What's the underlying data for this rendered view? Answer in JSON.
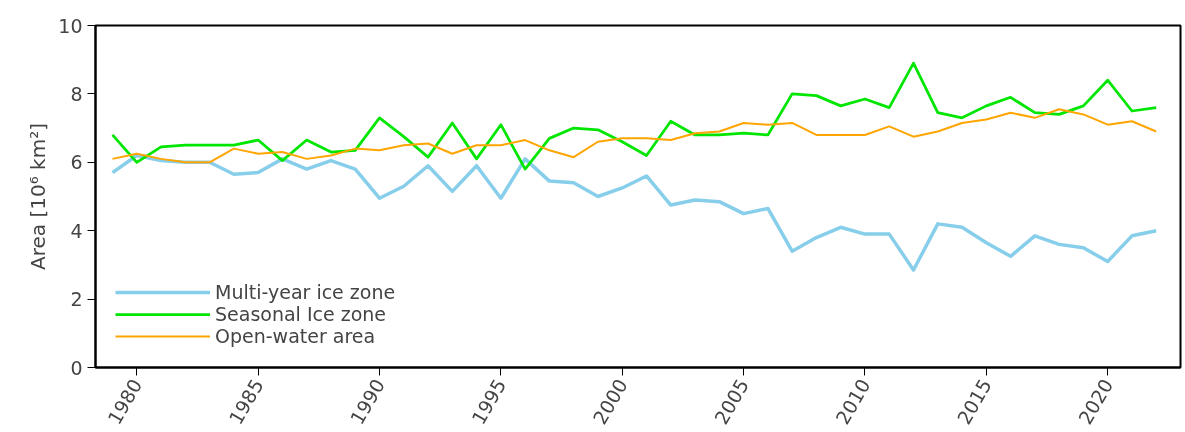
{
  "chart_data": {
    "type": "line",
    "ylabel": "Area [10⁶ km²]",
    "x": [
      1979,
      1980,
      1981,
      1982,
      1983,
      1984,
      1985,
      1986,
      1987,
      1988,
      1989,
      1990,
      1991,
      1992,
      1993,
      1994,
      1995,
      1996,
      1997,
      1998,
      1999,
      2000,
      2001,
      2002,
      2003,
      2004,
      2005,
      2006,
      2007,
      2008,
      2009,
      2010,
      2011,
      2012,
      2013,
      2014,
      2015,
      2016,
      2017,
      2018,
      2019,
      2020,
      2021,
      2022
    ],
    "series": [
      {
        "name": "Multi-year ice zone",
        "color": "#87ceeb",
        "values": [
          5.7,
          6.2,
          6.05,
          6.0,
          6.0,
          5.65,
          5.7,
          6.1,
          5.8,
          6.05,
          5.8,
          4.95,
          5.3,
          5.9,
          5.15,
          5.9,
          4.95,
          6.1,
          5.45,
          5.4,
          5.0,
          5.25,
          5.6,
          4.75,
          4.9,
          4.85,
          4.5,
          4.65,
          3.4,
          3.8,
          4.1,
          3.9,
          3.9,
          2.85,
          4.2,
          4.1,
          3.65,
          3.25,
          3.85,
          3.6,
          3.5,
          3.1,
          3.85,
          4.0
        ]
      },
      {
        "name": "Seasonal Ice zone",
        "color": "#00e600",
        "values": [
          6.8,
          6.0,
          6.45,
          6.5,
          6.5,
          6.5,
          6.65,
          6.05,
          6.65,
          6.3,
          6.35,
          7.3,
          6.75,
          6.15,
          7.15,
          6.1,
          7.1,
          5.8,
          6.7,
          7.0,
          6.95,
          6.6,
          6.2,
          7.2,
          6.8,
          6.8,
          6.85,
          6.8,
          8.0,
          7.95,
          7.65,
          7.85,
          7.6,
          8.9,
          7.45,
          7.3,
          7.65,
          7.9,
          7.45,
          7.4,
          7.65,
          8.4,
          7.5,
          7.6
        ]
      },
      {
        "name": "Open-water area",
        "color": "#ffa500",
        "values": [
          6.1,
          6.25,
          6.1,
          6.0,
          6.0,
          6.4,
          6.25,
          6.3,
          6.1,
          6.2,
          6.4,
          6.35,
          6.5,
          6.55,
          6.25,
          6.5,
          6.5,
          6.65,
          6.35,
          6.15,
          6.6,
          6.7,
          6.7,
          6.65,
          6.85,
          6.9,
          7.15,
          7.1,
          7.15,
          6.8,
          6.8,
          6.8,
          7.05,
          6.75,
          6.9,
          7.15,
          7.25,
          7.45,
          7.3,
          7.55,
          7.4,
          7.1,
          7.2,
          6.9
        ]
      }
    ],
    "xlim": [
      1978.3,
      2023.0
    ],
    "xticks": [
      1980,
      1985,
      1990,
      1995,
      2000,
      2005,
      2010,
      2015,
      2020
    ],
    "ylim": [
      0,
      10
    ],
    "yticks": [
      0,
      2,
      4,
      6,
      8,
      10
    ],
    "grid": false,
    "legend": "bottom left",
    "marker": "none",
    "line_style": "solid"
  }
}
